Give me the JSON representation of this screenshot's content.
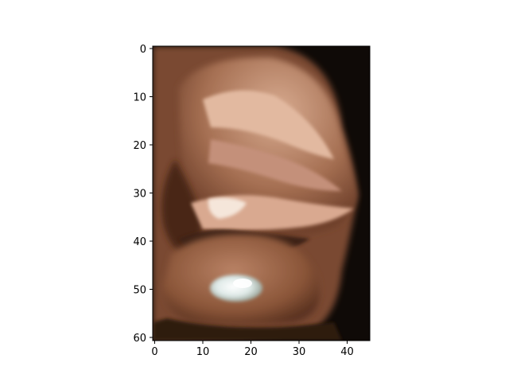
{
  "figure": {
    "x_ticks": [
      "0",
      "10",
      "20",
      "30",
      "40"
    ],
    "y_ticks": [
      "0",
      "10",
      "20",
      "30",
      "40",
      "50",
      "60"
    ],
    "x_range": [
      0,
      45
    ],
    "y_range": [
      0,
      61
    ],
    "image_content": "close-up photo of a human ear with a white earring on the lobe, dark background",
    "colors": {
      "background": "#0f0a07",
      "skin_dark": "#5a3220",
      "skin_mid": "#9a6446",
      "skin_light": "#d6a88c",
      "highlight": "#f5e6da",
      "earring": "#e8f0ef"
    }
  }
}
